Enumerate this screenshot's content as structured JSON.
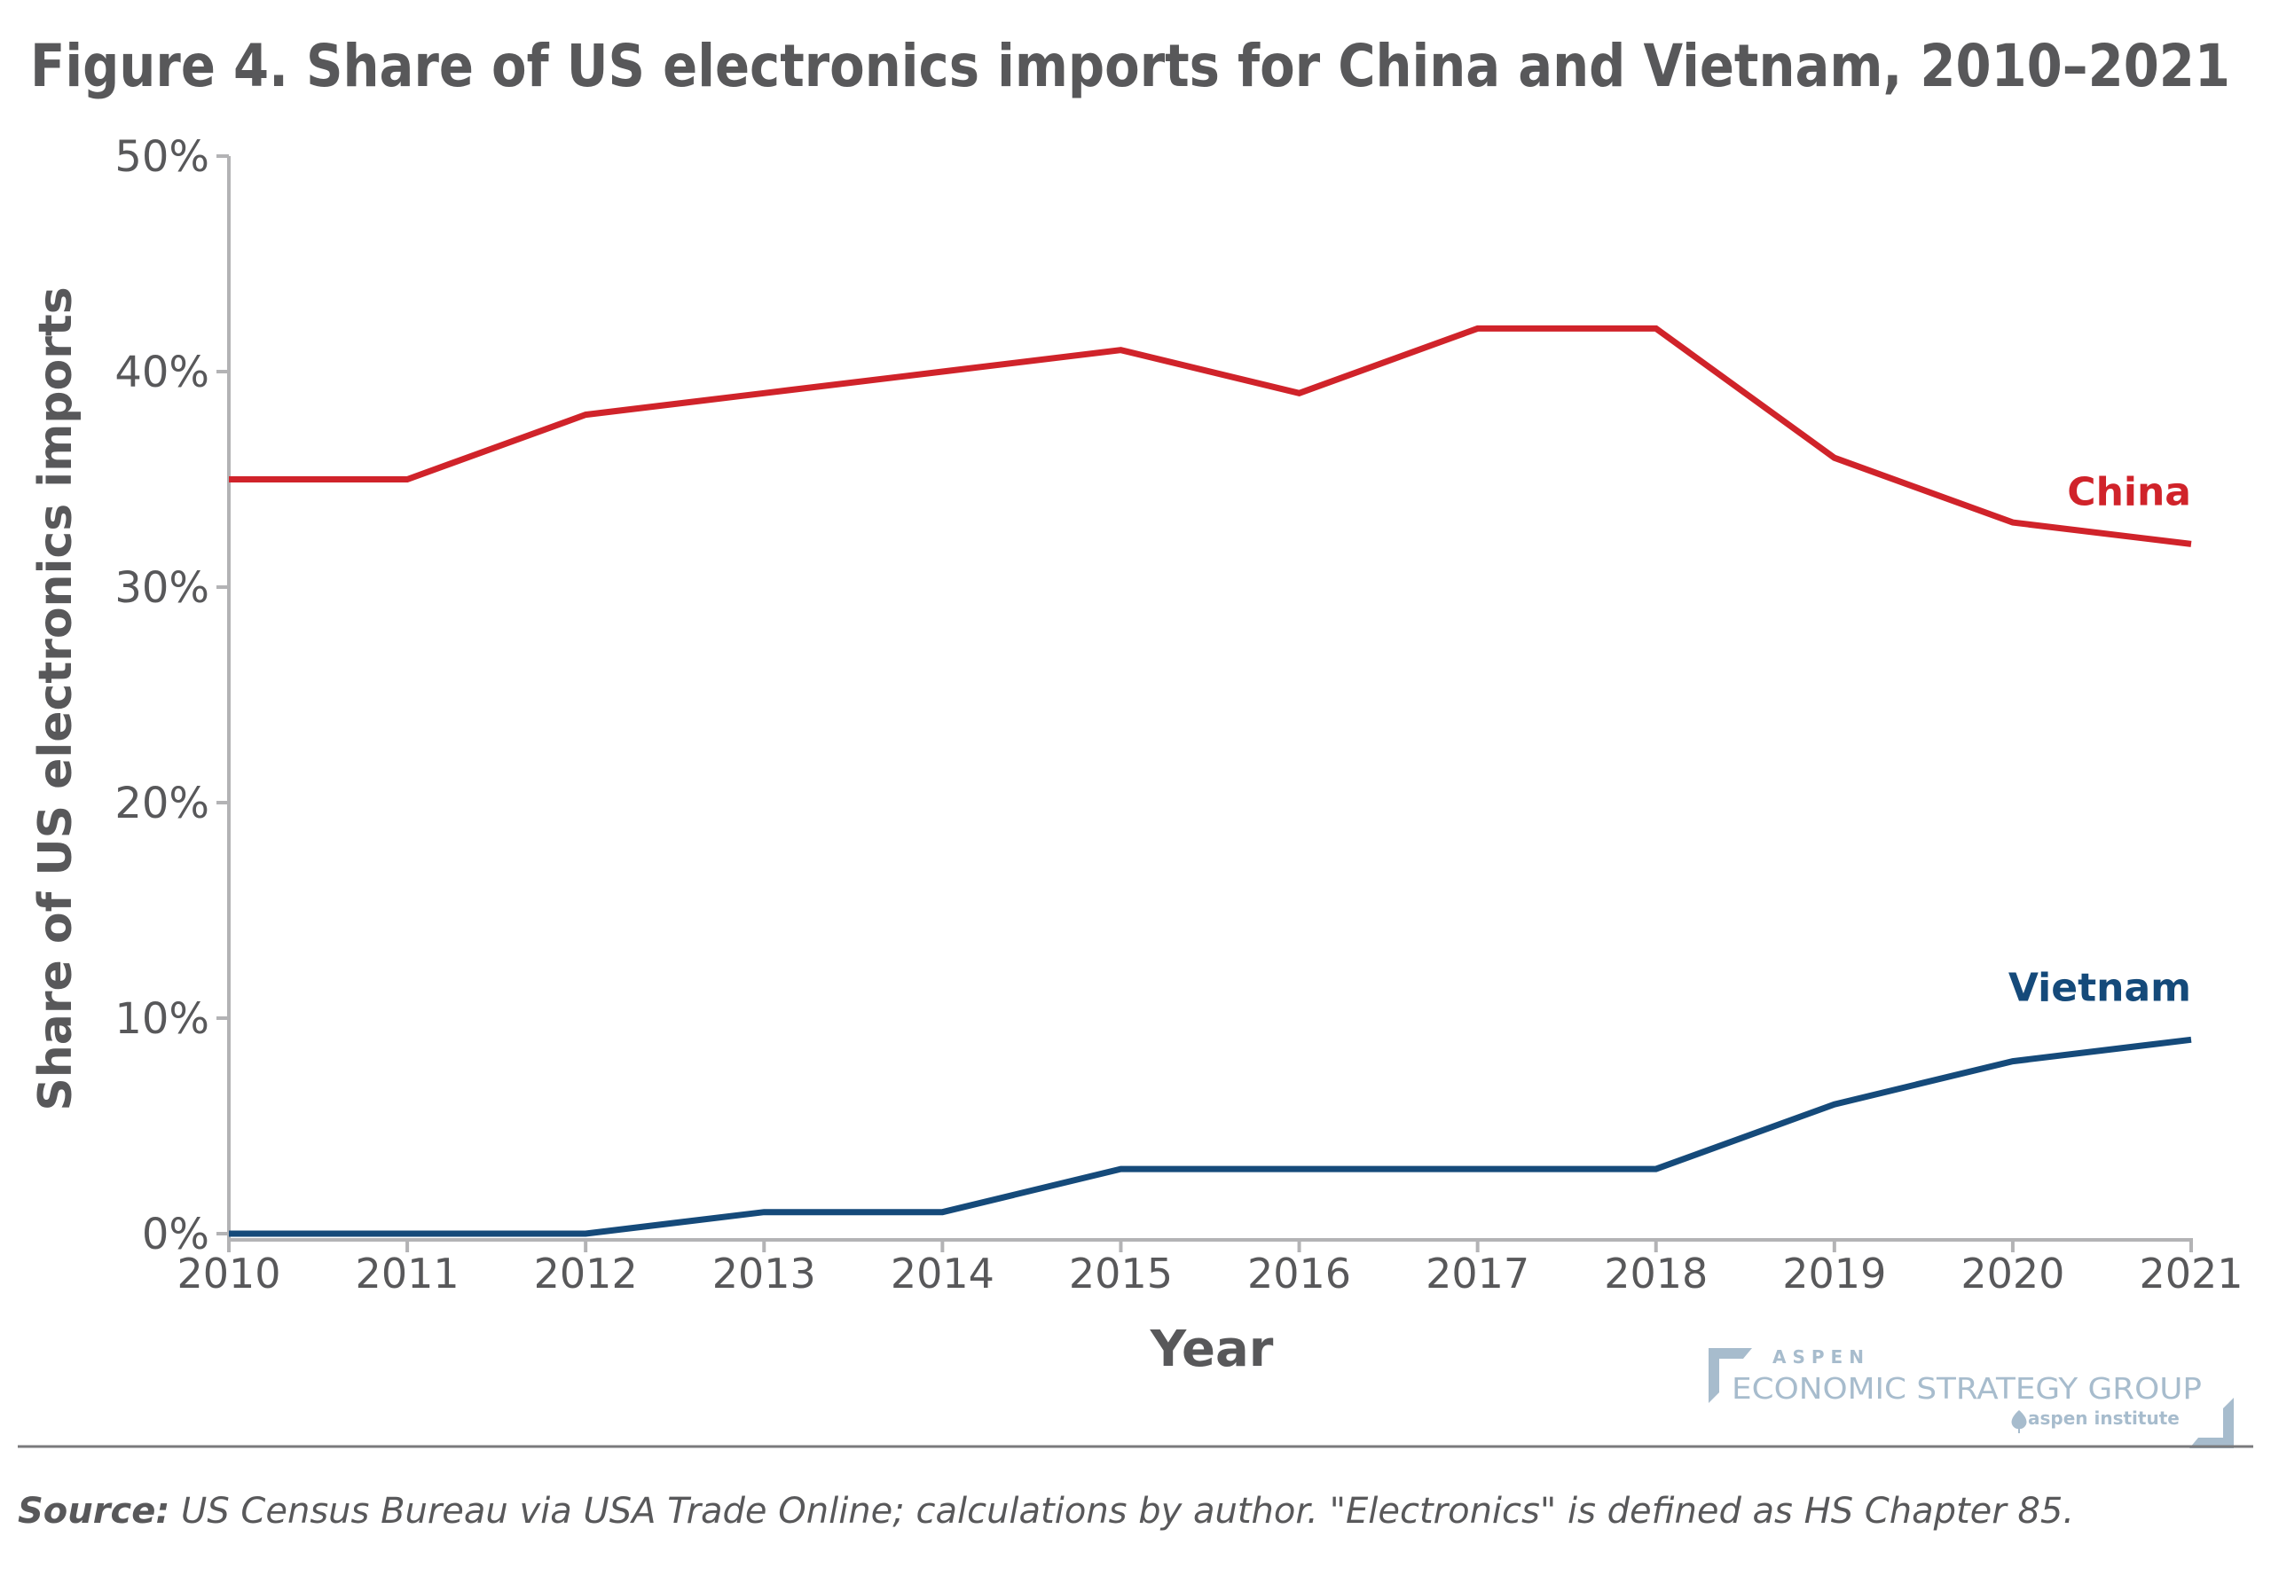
{
  "chart_data": {
    "type": "line",
    "title": "Figure 4. Share of US electronics imports for China and Vietnam, 2010–2021",
    "xlabel": "Year",
    "ylabel": "Share of US electronics imports",
    "x": [
      2010,
      2011,
      2012,
      2013,
      2014,
      2015,
      2016,
      2017,
      2018,
      2019,
      2020,
      2021
    ],
    "x_tick_labels": [
      "2010",
      "2011",
      "2012",
      "2013",
      "2014",
      "2015",
      "2016",
      "2017",
      "2018",
      "2019",
      "2020",
      "2021"
    ],
    "ylim": [
      0,
      50
    ],
    "y_ticks": [
      0,
      10,
      20,
      30,
      40,
      50
    ],
    "y_tick_labels": [
      "0%",
      "10%",
      "20%",
      "30%",
      "40%",
      "50%"
    ],
    "grid": false,
    "legend": "direct-labels-right",
    "series": [
      {
        "name": "China",
        "color": "#d0232a",
        "values": [
          35,
          35,
          38,
          39,
          40,
          41,
          39,
          42,
          42,
          36,
          33,
          32
        ]
      },
      {
        "name": "Vietnam",
        "color": "#154a7a",
        "values": [
          0,
          0,
          0,
          1,
          1,
          3,
          3,
          3,
          3,
          6,
          8,
          9
        ]
      }
    ]
  },
  "footer": {
    "source_label": "Source:",
    "source_text": " US Census Bureau via USA Trade Online; calculations by author. \"Electronics\" is defined as HS Chapter 85."
  },
  "logo": {
    "line1": "ASPEN",
    "line2": "ECONOMIC STRATEGY GROUP",
    "line3": "aspen institute",
    "color": "#a7bccd"
  }
}
